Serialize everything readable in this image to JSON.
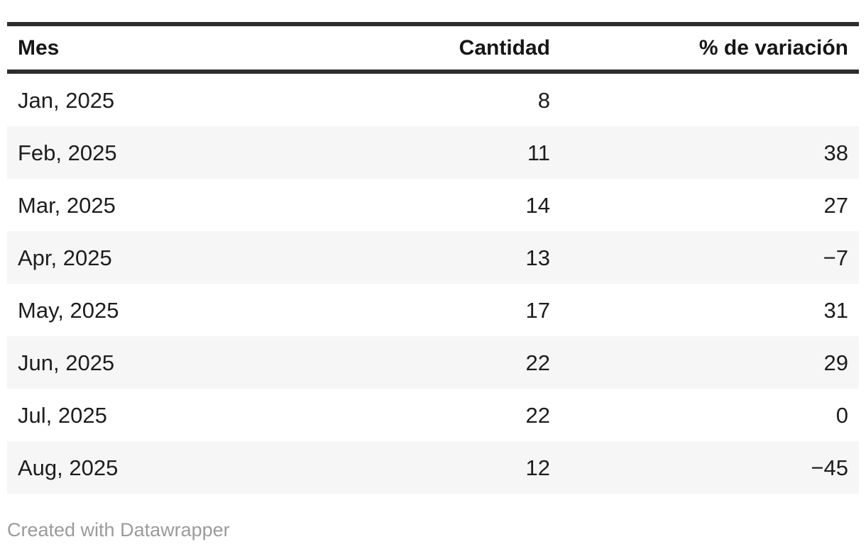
{
  "chart_data": {
    "type": "table",
    "title": "",
    "columns": [
      "Mes",
      "Cantidad",
      "% de variación"
    ],
    "categories": [
      "Jan, 2025",
      "Feb, 2025",
      "Mar, 2025",
      "Apr, 2025",
      "May, 2025",
      "Jun, 2025",
      "Jul, 2025",
      "Aug, 2025"
    ],
    "series": [
      {
        "name": "Cantidad",
        "values": [
          8,
          11,
          14,
          13,
          17,
          22,
          22,
          12
        ]
      },
      {
        "name": "% de variación",
        "values": [
          null,
          38,
          27,
          -7,
          31,
          29,
          0,
          -45
        ]
      }
    ],
    "layout": {
      "striped_rows": true,
      "header_rule": "top-and-bottom",
      "number_alignment": "right"
    }
  },
  "table": {
    "headers": {
      "mes": "Mes",
      "cantidad": "Cantidad",
      "variacion": "% de variación"
    },
    "rows": [
      {
        "mes": "Jan, 2025",
        "cantidad": "8",
        "variacion": ""
      },
      {
        "mes": "Feb, 2025",
        "cantidad": "11",
        "variacion": "38"
      },
      {
        "mes": "Mar, 2025",
        "cantidad": "14",
        "variacion": "27"
      },
      {
        "mes": "Apr, 2025",
        "cantidad": "13",
        "variacion": "−7"
      },
      {
        "mes": "May, 2025",
        "cantidad": "17",
        "variacion": "31"
      },
      {
        "mes": "Jun, 2025",
        "cantidad": "22",
        "variacion": "29"
      },
      {
        "mes": "Jul, 2025",
        "cantidad": "22",
        "variacion": "0"
      },
      {
        "mes": "Aug, 2025",
        "cantidad": "12",
        "variacion": "−45"
      }
    ]
  },
  "footer": {
    "attribution": "Created with Datawrapper"
  },
  "colors": {
    "rule": "#2d2d2d",
    "stripe": "#f6f6f6",
    "header_text": "#161616",
    "body_text": "#1d1d1d",
    "footer_text": "#9b9b9b",
    "background": "#ffffff"
  }
}
